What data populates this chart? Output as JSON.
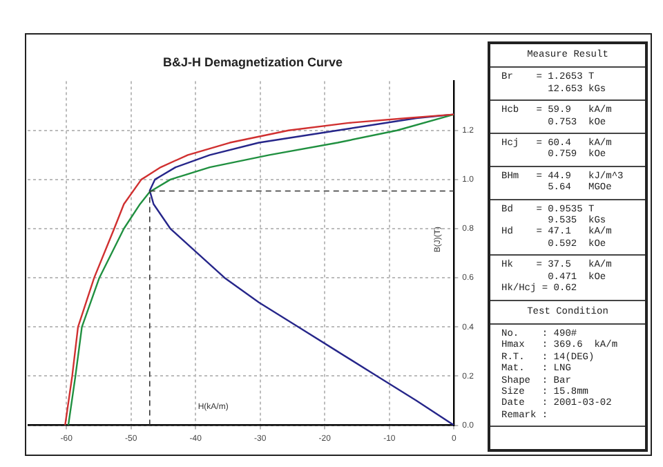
{
  "chart_data": [
    {
      "type": "line",
      "title": "B&J-H Demagnetization Curve",
      "xlabel": "H(kA/m)",
      "ylabel": "B(J)(T)",
      "xlim": [
        -66,
        0
      ],
      "xticks": [
        -60,
        -50,
        -40,
        -30,
        -20,
        -10,
        0
      ],
      "ylim": [
        0,
        1.4
      ],
      "yticks": [
        {
          "value": 0,
          "label": "0.0"
        },
        {
          "value": 0.2,
          "label": "0.2"
        },
        {
          "value": 0.4,
          "label": "0.4"
        },
        {
          "value": 0.6,
          "label": "0.6"
        },
        {
          "value": 0.8,
          "label": "0.8"
        },
        {
          "value": 1.0,
          "label": "1.0"
        },
        {
          "value": 1.2,
          "label": "1.2"
        }
      ],
      "grid": true,
      "series": [
        {
          "type": "line",
          "color": "#d03030",
          "x": [
            0,
            -7.3,
            -16.5,
            -25.6,
            -34.7,
            -41.2,
            -45.4,
            -48.4,
            -51.1,
            -52.6,
            -55.7,
            -58.2,
            -59.1,
            -60.2
          ],
          "values": [
            1.265,
            1.25,
            1.23,
            1.2,
            1.15,
            1.1,
            1.05,
            1.0,
            0.9,
            0.8,
            0.6,
            0.4,
            0.2,
            0
          ]
        },
        {
          "type": "line",
          "color": "#209040",
          "x": [
            0,
            -8.8,
            -18,
            -28.6,
            -37.8,
            -43.9,
            -47.1,
            -48.6,
            -51.1,
            -54.9,
            -57.6,
            -58.6,
            -59.7
          ],
          "values": [
            1.265,
            1.2,
            1.15,
            1.1,
            1.05,
            1.0,
            0.95,
            0.9,
            0.8,
            0.6,
            0.4,
            0.2,
            0
          ]
        },
        {
          "type": "line",
          "color": "#26268a",
          "x": [
            0,
            -5.8,
            -18,
            -30.2,
            -37.8,
            -43.1,
            -46.3,
            -47.1,
            -46.5,
            -43.9,
            -39.7,
            -35.5,
            -30.2,
            -24.1,
            -18,
            -11.9,
            -5.8,
            0
          ],
          "values": [
            1.265,
            1.25,
            1.2,
            1.15,
            1.1,
            1.05,
            1.0,
            0.955,
            0.9,
            0.8,
            0.7,
            0.6,
            0.5,
            0.4,
            0.3,
            0.2,
            0.1,
            0
          ]
        }
      ],
      "ref_lines": [
        {
          "axis": "x",
          "value": -47.1,
          "line_style": "dashed",
          "color": "#333333"
        },
        {
          "axis": "y",
          "value": 0.9535,
          "line_style": "dashed",
          "color": "#333333"
        }
      ]
    },
    {
      "type": "other",
      "title": "Measure Result",
      "annotations": [
        "Br    = 1.2653 T\n        12.653 kGs",
        "Hcb   = 59.9   kA/m\n        0.753  kOe",
        "Hcj   = 60.4   kA/m\n        0.759  kOe",
        "BHm   = 44.9   kJ/m^3\n        5.64   MGOe",
        "Bd    = 0.9535 T\n        9.535  kGs\nHd    = 47.1   kA/m\n        0.592  kOe",
        "Hk    = 37.5   kA/m\n        0.471  kOe\nHk/Hcj = 0.62"
      ]
    },
    {
      "type": "other",
      "title": "Test Condition",
      "annotations": [
        "No.    : 490#\nHmax   : 369.6  kA/m\nR.T.   : 14(DEG)\nMat.   : LNG\nShape  : Bar\nSize   : 15.8mm\nDate   : 2001-03-02\nRemark :"
      ]
    }
  ]
}
